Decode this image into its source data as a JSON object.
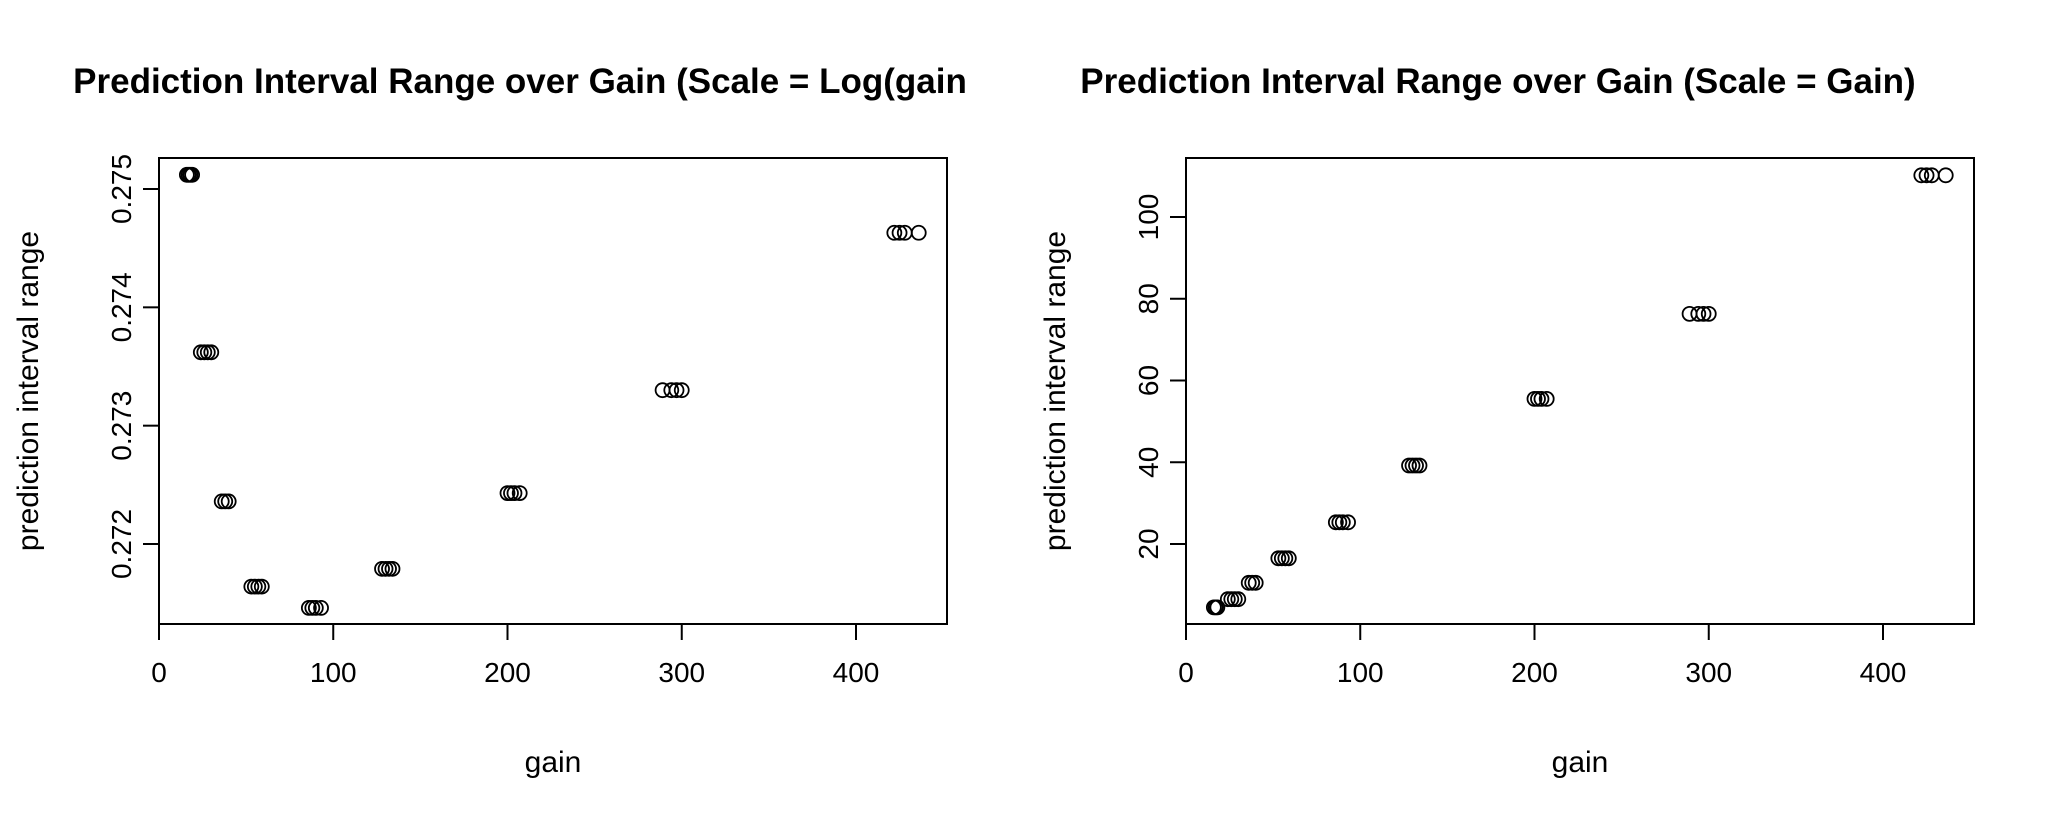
{
  "chart_data": [
    {
      "type": "scatter",
      "title": "Prediction Interval Range over Gain (Scale = Log(gain",
      "xlabel": "gain",
      "ylabel": "prediction interval range",
      "xlim": [
        0,
        450
      ],
      "ylim": [
        0.27131,
        0.27531
      ],
      "xticks": [
        0,
        100,
        200,
        300,
        400
      ],
      "xtick_labels": [
        "0",
        "100",
        "200",
        "300",
        "400"
      ],
      "yticks": [
        0.272,
        0.273,
        0.274,
        0.275
      ],
      "ytick_labels": [
        "0.272",
        "0.273",
        "0.274",
        "0.275"
      ],
      "grid": false,
      "series": [
        {
          "points": [
            [
              16,
              0.27512
            ],
            [
              17,
              0.27512
            ],
            [
              18,
              0.27512
            ],
            [
              19,
              0.27512
            ],
            [
              24,
              0.27362
            ],
            [
              26,
              0.27362
            ],
            [
              28,
              0.27362
            ],
            [
              30,
              0.27362
            ],
            [
              36,
              0.27236
            ],
            [
              38,
              0.27236
            ],
            [
              40,
              0.27236
            ],
            [
              53,
              0.27164
            ],
            [
              55,
              0.27164
            ],
            [
              57,
              0.27164
            ],
            [
              59,
              0.27164
            ],
            [
              86,
              0.27146
            ],
            [
              88,
              0.27146
            ],
            [
              90,
              0.27146
            ],
            [
              93,
              0.27146
            ],
            [
              128,
              0.27179
            ],
            [
              130,
              0.27179
            ],
            [
              132,
              0.27179
            ],
            [
              134,
              0.27179
            ],
            [
              200,
              0.27243
            ],
            [
              202,
              0.27243
            ],
            [
              204,
              0.27243
            ],
            [
              207,
              0.27243
            ],
            [
              289,
              0.2733
            ],
            [
              294,
              0.2733
            ],
            [
              297,
              0.2733
            ],
            [
              300,
              0.2733
            ],
            [
              422,
              0.27463
            ],
            [
              425,
              0.27463
            ],
            [
              428,
              0.27463
            ],
            [
              436,
              0.27463
            ]
          ]
        }
      ]
    },
    {
      "type": "scatter",
      "title": "Prediction Interval Range over Gain (Scale = Gain)",
      "xlabel": "gain",
      "ylabel": "prediction interval range",
      "xlim": [
        0,
        450
      ],
      "ylim": [
        0,
        115
      ],
      "xticks": [
        0,
        100,
        200,
        300,
        400
      ],
      "xtick_labels": [
        "0",
        "100",
        "200",
        "300",
        "400"
      ],
      "yticks": [
        20,
        40,
        60,
        80,
        100
      ],
      "ytick_labels": [
        "20",
        "40",
        "60",
        "80",
        "100"
      ],
      "grid": false,
      "series": [
        {
          "points": [
            [
              16,
              4.5
            ],
            [
              17,
              4.5
            ],
            [
              18,
              4.5
            ],
            [
              24,
              6.5
            ],
            [
              26,
              6.5
            ],
            [
              28,
              6.5
            ],
            [
              30,
              6.5
            ],
            [
              36,
              10.5
            ],
            [
              38,
              10.5
            ],
            [
              40,
              10.5
            ],
            [
              53,
              16.5
            ],
            [
              55,
              16.5
            ],
            [
              57,
              16.5
            ],
            [
              59,
              16.5
            ],
            [
              86,
              25.3
            ],
            [
              88,
              25.3
            ],
            [
              90,
              25.3
            ],
            [
              93,
              25.3
            ],
            [
              128,
              39.2
            ],
            [
              130,
              39.2
            ],
            [
              132,
              39.2
            ],
            [
              134,
              39.2
            ],
            [
              200,
              55.5
            ],
            [
              202,
              55.5
            ],
            [
              204,
              55.5
            ],
            [
              207,
              55.5
            ],
            [
              289,
              76.3
            ],
            [
              294,
              76.3
            ],
            [
              297,
              76.3
            ],
            [
              300,
              76.3
            ],
            [
              422,
              110.2
            ],
            [
              425,
              110.2
            ],
            [
              428,
              110.2
            ],
            [
              436,
              110.2
            ]
          ]
        }
      ]
    }
  ]
}
